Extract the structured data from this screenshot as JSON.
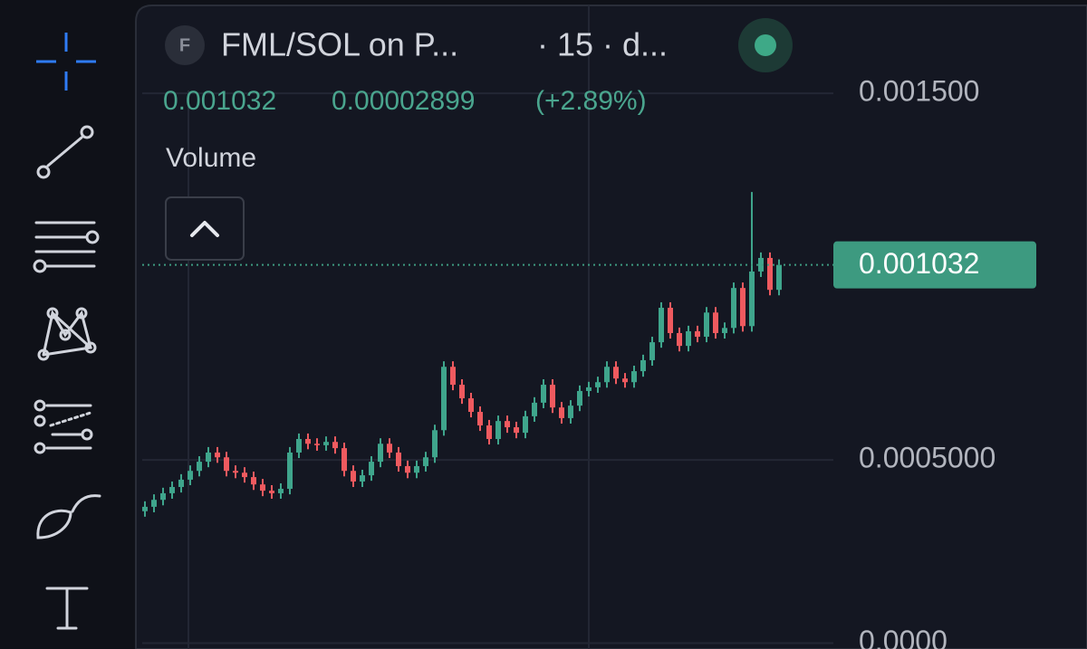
{
  "header": {
    "icon_letter": "F",
    "symbol": "FML/SOL on P...",
    "interval": "· 15 · d...",
    "price": "0.001032",
    "change": "0.00002899",
    "change_pct": "(+2.89%)",
    "indicator": "Volume"
  },
  "chart_data": {
    "type": "candlestick",
    "up_color": "#3fa58c",
    "down_color": "#ef5a5f",
    "open": [
      0.00036,
      0.000372,
      0.000391,
      0.000409,
      0.000426,
      0.000446,
      0.00047,
      0.000495,
      0.00052,
      0.000507,
      0.00047,
      0.000465,
      0.000453,
      0.000433,
      0.000416,
      0.000409,
      0.000421,
      0.00052,
      0.000557,
      0.000544,
      0.00054,
      0.000549,
      0.000532,
      0.00047,
      0.000441,
      0.000458,
      0.000495,
      0.000544,
      0.00052,
      0.000483,
      0.000465,
      0.000483,
      0.000507,
      0.000581,
      0.000754,
      0.000705,
      0.000668,
      0.000631,
      0.000594,
      0.000557,
      0.000606,
      0.000589,
      0.000574,
      0.000619,
      0.000656,
      0.000705,
      0.000643,
      0.000614,
      0.000648,
      0.000688,
      0.000698,
      0.000712,
      0.000754,
      0.000722,
      0.000712,
      0.000742,
      0.000772,
      0.000821,
      0.000915,
      0.000846,
      0.000811,
      0.000851,
      0.000836,
      0.000902,
      0.000846,
      0.00086,
      0.000969,
      0.000865,
      0.001014,
      0.001051,
      0.000964
    ],
    "high": [
      0.000387,
      0.000406,
      0.000424,
      0.000441,
      0.000461,
      0.000485,
      0.00051,
      0.000535,
      0.000535,
      0.000522,
      0.000485,
      0.00048,
      0.000468,
      0.000448,
      0.000431,
      0.000436,
      0.000535,
      0.000572,
      0.000572,
      0.000559,
      0.000564,
      0.000564,
      0.000547,
      0.000485,
      0.000473,
      0.00051,
      0.000559,
      0.000559,
      0.000535,
      0.000498,
      0.000498,
      0.000522,
      0.000596,
      0.000769,
      0.000769,
      0.00072,
      0.000683,
      0.000646,
      0.000609,
      0.000621,
      0.000621,
      0.000604,
      0.000634,
      0.000671,
      0.00072,
      0.00072,
      0.000658,
      0.000663,
      0.000703,
      0.000713,
      0.000727,
      0.000769,
      0.000769,
      0.000737,
      0.000757,
      0.000787,
      0.000836,
      0.00093,
      0.00093,
      0.000861,
      0.000866,
      0.000866,
      0.000917,
      0.000917,
      0.000875,
      0.000984,
      0.000984,
      0.001231,
      0.001066,
      0.001066,
      0.001047
    ],
    "low": [
      0.000345,
      0.000357,
      0.000376,
      0.000394,
      0.000411,
      0.000431,
      0.000455,
      0.00048,
      0.000492,
      0.000455,
      0.00045,
      0.000438,
      0.000418,
      0.000401,
      0.000394,
      0.000394,
      0.000406,
      0.000505,
      0.000529,
      0.000525,
      0.000525,
      0.000517,
      0.000455,
      0.000426,
      0.000426,
      0.000443,
      0.00048,
      0.000505,
      0.000468,
      0.00045,
      0.00045,
      0.000468,
      0.000492,
      0.000566,
      0.00069,
      0.000653,
      0.000616,
      0.000579,
      0.000542,
      0.000542,
      0.000574,
      0.000559,
      0.000559,
      0.000604,
      0.000641,
      0.000628,
      0.000599,
      0.000599,
      0.000633,
      0.000673,
      0.000683,
      0.000697,
      0.000707,
      0.000697,
      0.000697,
      0.000727,
      0.000757,
      0.000806,
      0.000831,
      0.000796,
      0.000796,
      0.000821,
      0.000821,
      0.000831,
      0.000831,
      0.000845,
      0.00085,
      0.00085,
      0.000999,
      0.000949,
      0.000949
    ],
    "close": [
      0.000372,
      0.000391,
      0.000409,
      0.000426,
      0.000446,
      0.00047,
      0.000495,
      0.00052,
      0.000507,
      0.00047,
      0.000465,
      0.000453,
      0.000433,
      0.000416,
      0.000409,
      0.000421,
      0.00052,
      0.000557,
      0.000544,
      0.00054,
      0.000549,
      0.000532,
      0.00047,
      0.000441,
      0.000458,
      0.000495,
      0.000544,
      0.00052,
      0.000483,
      0.000465,
      0.000483,
      0.000507,
      0.000581,
      0.000754,
      0.000705,
      0.000668,
      0.000631,
      0.000594,
      0.000557,
      0.000606,
      0.000589,
      0.000574,
      0.000619,
      0.000656,
      0.000705,
      0.000643,
      0.000614,
      0.000648,
      0.000688,
      0.000698,
      0.000712,
      0.000754,
      0.000722,
      0.000712,
      0.000742,
      0.000772,
      0.000821,
      0.000915,
      0.000846,
      0.000811,
      0.000851,
      0.000836,
      0.000902,
      0.000846,
      0.00086,
      0.000969,
      0.000865,
      0.001014,
      0.001051,
      0.000964,
      0.001032
    ],
    "last_price": 0.001032,
    "last_price_color": "#3d9a80",
    "ylim": [
      -1.6e-05,
      0.001735
    ],
    "yticks": [
      {
        "value": 0,
        "label": "0.0000"
      },
      {
        "value": 0.0005,
        "label": "0.0005000"
      },
      {
        "value": 0.0015,
        "label": "0.001500"
      }
    ],
    "grid": true
  }
}
